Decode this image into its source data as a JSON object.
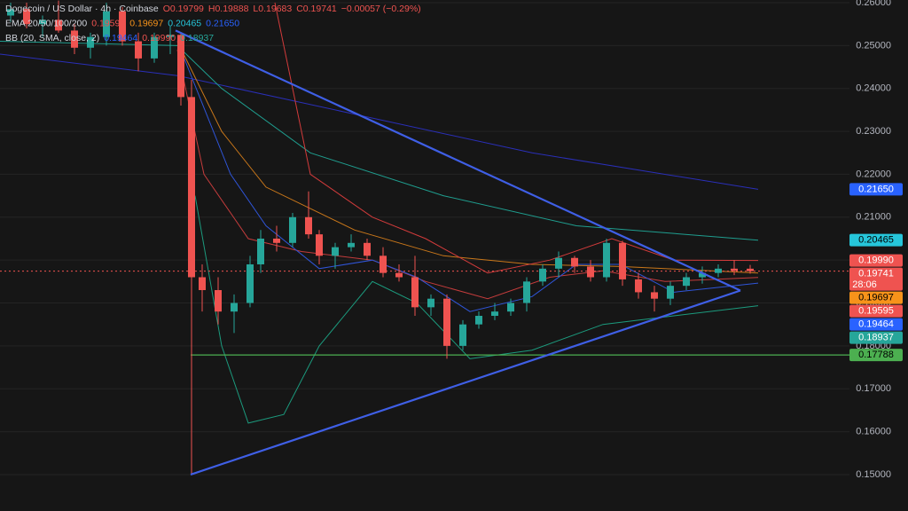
{
  "chart_data": {
    "type": "candlestick",
    "header_rows": [
      [
        {
          "text": "Dogecoin / US Dollar · 4h · Coinbase",
          "color": "#d1d4dc"
        },
        {
          "text": "O0.19799",
          "color": "#ef5350"
        },
        {
          "text": "H0.19888",
          "color": "#ef5350"
        },
        {
          "text": "L0.19683",
          "color": "#ef5350"
        },
        {
          "text": "C0.19741",
          "color": "#ef5350"
        },
        {
          "text": "−0.00057 (−0.29%)",
          "color": "#ef5350"
        }
      ],
      [
        {
          "text": "EMA 20/50/100/200",
          "color": "#d1d4dc"
        },
        {
          "text": "0.19595",
          "color": "#ef5350"
        },
        {
          "text": "0.19697",
          "color": "#f7931a"
        },
        {
          "text": "0.20465",
          "color": "#26c6da"
        },
        {
          "text": "0.21650",
          "color": "#2962ff"
        }
      ],
      [
        {
          "text": "BB (20, SMA, close, 2)",
          "color": "#d1d4dc"
        },
        {
          "text": "0.19464",
          "color": "#2962ff"
        },
        {
          "text": "0.19990",
          "color": "#ef5350"
        },
        {
          "text": "0.18937",
          "color": "#26a69a"
        }
      ]
    ],
    "xlim": [
      0,
      958
    ],
    "ylim": [
      0.14151,
      0.26062
    ],
    "yticks": [
      {
        "value": 0.26,
        "label": "0.26000"
      },
      {
        "value": 0.25,
        "label": "0.25000"
      },
      {
        "value": 0.24,
        "label": "0.24000"
      },
      {
        "value": 0.23,
        "label": "0.23000"
      },
      {
        "value": 0.22,
        "label": "0.22000"
      },
      {
        "value": 0.21,
        "label": "0.21000"
      },
      {
        "value": 0.2,
        "label": "0.20000"
      },
      {
        "value": 0.19,
        "label": "0.19000"
      },
      {
        "value": 0.18,
        "label": "0.18000"
      },
      {
        "value": 0.17,
        "label": "0.17000"
      },
      {
        "value": 0.16,
        "label": "0.16000"
      },
      {
        "value": 0.15,
        "label": "0.15000"
      }
    ],
    "grid": true,
    "up_color": "#26a69a",
    "down_color": "#ef5350",
    "candles": {
      "x": [
        12,
        30,
        48,
        66,
        84,
        102,
        120,
        138,
        156,
        174,
        192,
        204,
        216,
        228,
        246,
        264,
        282,
        294,
        312,
        330,
        348,
        360,
        378,
        396,
        414,
        432,
        450,
        468,
        486,
        504,
        522,
        540,
        558,
        576,
        594,
        612,
        630,
        648,
        666,
        684,
        702,
        720,
        738,
        756,
        774,
        792,
        810,
        828,
        846
      ],
      "open": [
        0.257,
        0.2585,
        0.255,
        0.256,
        0.2535,
        0.2495,
        0.252,
        0.258,
        0.251,
        0.247,
        0.252,
        0.2525,
        0.238,
        0.196,
        0.193,
        0.188,
        0.19,
        0.199,
        0.205,
        0.204,
        0.21,
        0.206,
        0.201,
        0.203,
        0.204,
        0.201,
        0.197,
        0.196,
        0.189,
        0.191,
        0.18,
        0.185,
        0.187,
        0.188,
        0.19,
        0.195,
        0.198,
        0.2005,
        0.1985,
        0.196,
        0.204,
        0.1955,
        0.1925,
        0.191,
        0.194,
        0.196,
        0.197,
        0.198,
        0.19799
      ],
      "high": [
        0.26,
        0.26,
        0.257,
        0.2605,
        0.255,
        0.253,
        0.26,
        0.259,
        0.253,
        0.253,
        0.2545,
        0.253,
        0.242,
        0.199,
        0.196,
        0.192,
        0.201,
        0.207,
        0.208,
        0.211,
        0.216,
        0.207,
        0.204,
        0.206,
        0.205,
        0.203,
        0.199,
        0.201,
        0.192,
        0.192,
        0.186,
        0.188,
        0.19,
        0.191,
        0.196,
        0.199,
        0.202,
        0.201,
        0.2,
        0.205,
        0.2045,
        0.197,
        0.194,
        0.195,
        0.197,
        0.1985,
        0.199,
        0.2,
        0.19888
      ],
      "low": [
        0.2555,
        0.254,
        0.252,
        0.253,
        0.248,
        0.247,
        0.25,
        0.25,
        0.244,
        0.246,
        0.248,
        0.236,
        0.15,
        0.188,
        0.185,
        0.183,
        0.189,
        0.197,
        0.202,
        0.203,
        0.205,
        0.199,
        0.198,
        0.202,
        0.2,
        0.196,
        0.195,
        0.187,
        0.187,
        0.177,
        0.179,
        0.184,
        0.186,
        0.187,
        0.188,
        0.194,
        0.196,
        0.197,
        0.195,
        0.195,
        0.194,
        0.191,
        0.188,
        0.1895,
        0.193,
        0.1945,
        0.196,
        0.1965,
        0.19683
      ],
      "close": [
        0.2585,
        0.255,
        0.256,
        0.2535,
        0.2495,
        0.252,
        0.258,
        0.251,
        0.247,
        0.252,
        0.2525,
        0.238,
        0.196,
        0.193,
        0.188,
        0.19,
        0.199,
        0.205,
        0.204,
        0.21,
        0.206,
        0.201,
        0.203,
        0.204,
        0.201,
        0.197,
        0.196,
        0.189,
        0.191,
        0.18,
        0.185,
        0.187,
        0.188,
        0.19,
        0.195,
        0.198,
        0.2005,
        0.1985,
        0.196,
        0.204,
        0.1955,
        0.1925,
        0.191,
        0.194,
        0.196,
        0.197,
        0.198,
        0.1975,
        0.19741
      ]
    },
    "lines": [
      {
        "color": "#2a2fb8",
        "x": [
          0,
          200,
          400,
          600,
          855
        ],
        "values": [
          0.248,
          0.243,
          0.234,
          0.225,
          0.2165
        ]
      },
      {
        "color": "#1f9e8f",
        "x": [
          0,
          200,
          250,
          350,
          500,
          650,
          855
        ],
        "values": [
          0.251,
          0.25,
          0.24,
          0.225,
          0.215,
          0.208,
          0.20465
        ]
      },
      {
        "color": "#c9771a",
        "x": [
          200,
          250,
          300,
          400,
          500,
          600,
          700,
          855
        ],
        "values": [
          0.251,
          0.23,
          0.217,
          0.207,
          0.201,
          0.199,
          0.1985,
          0.19697
        ]
      },
      {
        "color": "#c43c3c",
        "x": [
          200,
          230,
          280,
          340,
          420,
          480,
          550,
          620,
          680,
          750,
          855
        ],
        "values": [
          0.249,
          0.22,
          0.205,
          0.202,
          0.2,
          0.195,
          0.191,
          0.196,
          0.1975,
          0.195,
          0.19595
        ]
      },
      {
        "color": "#2f55d8",
        "x": [
          200,
          260,
          300,
          360,
          420,
          470,
          530,
          600,
          650,
          700,
          760,
          855
        ],
        "values": [
          0.251,
          0.22,
          0.208,
          0.198,
          0.2,
          0.196,
          0.188,
          0.1915,
          0.199,
          0.199,
          0.1925,
          0.19464
        ]
      },
      {
        "color": "#d23b3b",
        "x": [
          310,
          350,
          420,
          480,
          550,
          620,
          690,
          760,
          855
        ],
        "values": [
          0.26,
          0.22,
          0.21,
          0.205,
          0.197,
          0.2,
          0.205,
          0.2,
          0.1999
        ]
      },
      {
        "color": "#1c9b7e",
        "x": [
          220,
          250,
          280,
          320,
          360,
          420,
          470,
          530,
          600,
          680,
          760,
          855
        ],
        "values": [
          0.215,
          0.18,
          0.162,
          0.164,
          0.18,
          0.195,
          0.19,
          0.177,
          0.179,
          0.185,
          0.187,
          0.18937
        ]
      }
    ],
    "trendline_color": "#3f5fe6",
    "trendlines": [
      {
        "x": [
          198,
          835
        ],
        "values": [
          0.2535,
          0.1929
        ]
      },
      {
        "x": [
          215,
          835
        ],
        "values": [
          0.15,
          0.1929
        ]
      }
    ],
    "level_line": {
      "value": 0.17788,
      "x": [
        215,
        958
      ],
      "color": "#4caf50"
    },
    "price_labels": [
      {
        "value": 0.2165,
        "label": "0.21650",
        "color": "#2962ff",
        "text_color": "#ffffff"
      },
      {
        "value": 0.20465,
        "label": "0.20465",
        "color": "#26c6da",
        "text_color": "#000000"
      },
      {
        "value": 0.1999,
        "label": "0.19990",
        "color": "#ef5350",
        "text_color": "#ffffff"
      },
      {
        "value": 0.19741,
        "label": "0.19741",
        "color": "#ef5350",
        "text_color": "#ffffff",
        "timer": "28:06"
      },
      {
        "value": 0.19697,
        "label": "0.19697",
        "color": "#f7931a",
        "text_color": "#000000"
      },
      {
        "value": 0.19595,
        "label": "0.19595",
        "color": "#ef5350",
        "text_color": "#ffffff"
      },
      {
        "value": 0.19464,
        "label": "0.19464",
        "color": "#2962ff",
        "text_color": "#ffffff"
      },
      {
        "value": 0.18937,
        "label": "0.18937",
        "color": "#26a69a",
        "text_color": "#ffffff"
      },
      {
        "value": 0.17788,
        "label": "0.17788",
        "color": "#4caf50",
        "text_color": "#000000"
      }
    ],
    "last_price": 0.19741
  }
}
